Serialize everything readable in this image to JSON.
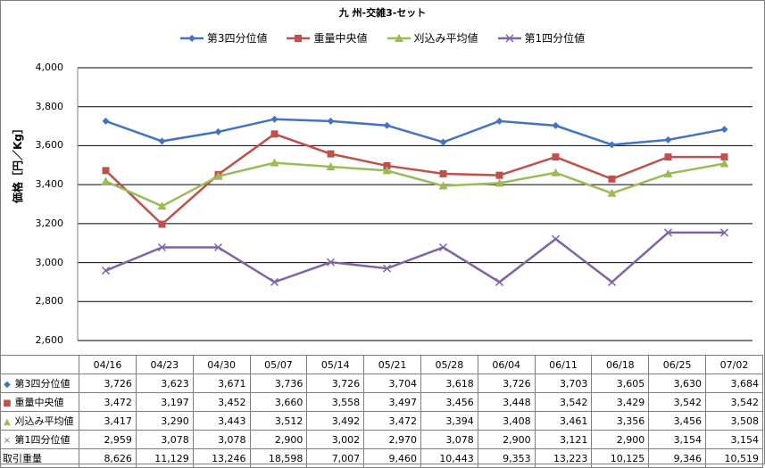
{
  "chart_data": {
    "type": "line",
    "title": "九 州-交雑3-セット",
    "ylabel": "価格［円／Kg］",
    "ylim": [
      2600,
      4000
    ],
    "ytick_labels": [
      "4,000",
      "3,800",
      "3,600",
      "3,400",
      "3,200",
      "3,000",
      "2,800",
      "2,600"
    ],
    "yticks": [
      4000,
      3800,
      3600,
      3400,
      3200,
      3000,
      2800,
      2600
    ],
    "categories": [
      "04/16",
      "04/23",
      "04/30",
      "05/07",
      "05/14",
      "05/21",
      "05/28",
      "06/04",
      "06/11",
      "06/18",
      "06/25",
      "07/02"
    ],
    "grid": true,
    "legend": "top",
    "series": [
      {
        "name": "第3四分位値",
        "color": "#4472C4",
        "marker": "diamond",
        "values": [
          3726,
          3623,
          3671,
          3736,
          3726,
          3704,
          3618,
          3726,
          3703,
          3605,
          3630,
          3684
        ],
        "labels": [
          "3,726",
          "3,623",
          "3,671",
          "3,736",
          "3,726",
          "3,704",
          "3,618",
          "3,726",
          "3,703",
          "3,605",
          "3,630",
          "3,684"
        ]
      },
      {
        "name": "重量中央値",
        "color": "#C0504D",
        "marker": "square",
        "values": [
          3472,
          3197,
          3452,
          3660,
          3558,
          3497,
          3456,
          3448,
          3542,
          3429,
          3542,
          3542
        ],
        "labels": [
          "3,472",
          "3,197",
          "3,452",
          "3,660",
          "3,558",
          "3,497",
          "3,456",
          "3,448",
          "3,542",
          "3,429",
          "3,542",
          "3,542"
        ]
      },
      {
        "name": "刈込み平均値",
        "color": "#9BBB59",
        "marker": "triangle",
        "values": [
          3417,
          3290,
          3443,
          3512,
          3492,
          3472,
          3394,
          3408,
          3461,
          3356,
          3456,
          3508
        ],
        "labels": [
          "3,417",
          "3,290",
          "3,443",
          "3,512",
          "3,492",
          "3,472",
          "3,394",
          "3,408",
          "3,461",
          "3,356",
          "3,456",
          "3,508"
        ]
      },
      {
        "name": "第1四分位値",
        "color": "#8064A2",
        "marker": "x",
        "values": [
          2959,
          3078,
          3078,
          2900,
          3002,
          2970,
          3078,
          2900,
          3121,
          2900,
          3154,
          3154
        ],
        "labels": [
          "2,959",
          "3,078",
          "3,078",
          "2,900",
          "3,002",
          "2,970",
          "3,078",
          "2,900",
          "3,121",
          "2,900",
          "3,154",
          "3,154"
        ]
      }
    ],
    "table_extra_row": {
      "name": "取引重量",
      "values": [
        8626,
        11129,
        13246,
        18598,
        7007,
        9460,
        10443,
        9353,
        13223,
        10125,
        9346,
        10519
      ],
      "labels": [
        "8,626",
        "11,129",
        "13,246",
        "18,598",
        "7,007",
        "9,460",
        "10,443",
        "9,353",
        "13,223",
        "10,125",
        "9,346",
        "10,519"
      ]
    }
  }
}
